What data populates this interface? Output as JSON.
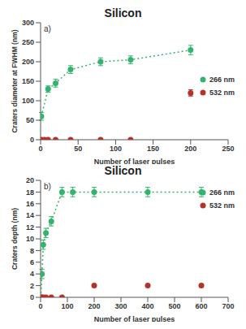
{
  "chart_data": [
    {
      "type": "scatter",
      "title": "Silicon",
      "annotation": "a)",
      "x_label": "Number of laser pulses",
      "y_label": "Craters diameter at FWHM (nm)",
      "xlim": [
        0,
        250
      ],
      "xticks": [
        0,
        50,
        100,
        150,
        200,
        250
      ],
      "ylim": [
        0,
        300
      ],
      "yticks": [
        0,
        50,
        100,
        150,
        200,
        250,
        300
      ],
      "grid": false,
      "legend": "right",
      "series": [
        {
          "name": "266 nm",
          "color": "#33b36b",
          "marker": "circle",
          "line_style": "dotted",
          "x": [
            1,
            10,
            20,
            40,
            80,
            120,
            200
          ],
          "values": [
            60,
            130,
            145,
            180,
            200,
            205,
            230
          ],
          "errors": [
            10,
            8,
            10,
            10,
            10,
            10,
            12
          ]
        },
        {
          "name": "532 nm",
          "color": "#b8302a",
          "marker": "circle",
          "x": [
            1,
            5,
            10,
            20,
            40,
            80,
            120,
            200
          ],
          "values": [
            0,
            0,
            0,
            0,
            0,
            0,
            0,
            120
          ],
          "errors": [
            0,
            0,
            0,
            0,
            0,
            0,
            0,
            8
          ]
        }
      ]
    },
    {
      "type": "scatter",
      "title": "Silicon",
      "annotation": "b)",
      "x_label": "Number of laser pulses",
      "y_label": "Craters depth (nm)",
      "xlim": [
        0,
        700
      ],
      "xticks": [
        0,
        100,
        200,
        300,
        400,
        500,
        600,
        700
      ],
      "ylim": [
        0,
        20
      ],
      "yticks": [
        0,
        2,
        4,
        6,
        8,
        10,
        12,
        14,
        16,
        18,
        20
      ],
      "grid": false,
      "legend": "upper right",
      "series": [
        {
          "name": "266 nm",
          "color": "#33b36b",
          "marker": "circle",
          "line_style": "dotted",
          "x": [
            1,
            5,
            10,
            20,
            40,
            80,
            120,
            200,
            400,
            600
          ],
          "values": [
            0,
            4,
            9,
            11,
            13,
            18,
            18,
            18,
            18,
            18
          ],
          "errors": [
            0,
            0.8,
            0.8,
            0.8,
            0.8,
            0.8,
            0.8,
            0.8,
            0.8,
            0.8
          ]
        },
        {
          "name": "532 nm",
          "color": "#b8302a",
          "marker": "circle",
          "x": [
            1,
            5,
            10,
            20,
            40,
            80,
            200,
            400,
            600
          ],
          "values": [
            0,
            0,
            0,
            0,
            0,
            0,
            2,
            2,
            2
          ],
          "errors": [
            0,
            0,
            0,
            0,
            0,
            0,
            0,
            0,
            0
          ]
        }
      ]
    }
  ]
}
